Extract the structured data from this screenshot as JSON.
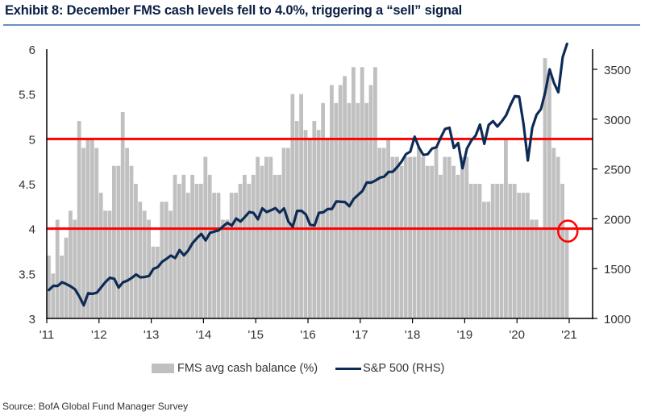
{
  "chart_data": {
    "type": "bar",
    "title": "Exhibit 8: December FMS cash levels fell to 4.0%, triggering a “sell” signal",
    "source": "Source: BofA Global Fund Manager Survey",
    "x_tick_labels": [
      "'11",
      "'12",
      "'13",
      "'14",
      "'15",
      "'16",
      "'17",
      "'18",
      "'19",
      "'20",
      "'21"
    ],
    "left_axis": {
      "label": "FMS avg cash balance (%)",
      "range": [
        3,
        6
      ],
      "ticks": [
        "3",
        "3.5",
        "4",
        "4.5",
        "5",
        "5.5",
        "6"
      ]
    },
    "right_axis": {
      "label": "S&P 500 (RHS)",
      "range": [
        1000,
        3700
      ],
      "ticks": [
        "1000",
        "1500",
        "2000",
        "2500",
        "3000",
        "3500"
      ]
    },
    "legend": {
      "position": "bottom",
      "entries": [
        "FMS avg cash balance (%)",
        "S&P 500 (RHS)"
      ]
    },
    "thresholds": [
      {
        "name": "sell-signal-threshold",
        "value": 4.0
      },
      {
        "name": "buy-signal-threshold",
        "value": 5.0
      }
    ],
    "annotation": {
      "type": "circle",
      "target": "Dec 2020",
      "value": 4.0
    },
    "series": [
      {
        "name": "FMS avg cash balance (%)",
        "type": "bar",
        "axis": "left",
        "start": "2011-01",
        "frequency": "monthly",
        "values": [
          3.7,
          3.5,
          4.1,
          3.7,
          3.9,
          4.2,
          4.1,
          5.2,
          4.9,
          5.0,
          5.0,
          4.9,
          4.4,
          4.2,
          4.2,
          4.7,
          4.7,
          5.3,
          4.9,
          4.7,
          4.5,
          4.3,
          4.2,
          4.1,
          3.8,
          3.8,
          4.3,
          4.3,
          4.2,
          4.6,
          4.5,
          4.6,
          4.4,
          4.6,
          4.5,
          4.5,
          4.8,
          4.6,
          4.4,
          4.4,
          4.1,
          4.1,
          4.4,
          4.4,
          4.5,
          4.6,
          4.5,
          4.6,
          4.8,
          4.7,
          4.8,
          4.8,
          4.6,
          4.6,
          4.9,
          4.9,
          5.5,
          5.2,
          5.5,
          5.1,
          5.0,
          5.2,
          5.1,
          5.4,
          5.0,
          5.6,
          5.4,
          5.6,
          5.7,
          5.4,
          5.8,
          5.4,
          5.8,
          5.4,
          5.6,
          5.8,
          4.9,
          4.9,
          5.0,
          4.8,
          4.8,
          4.7,
          4.8,
          4.8,
          4.8,
          4.9,
          4.8,
          4.7,
          4.7,
          4.9,
          4.6,
          4.8,
          4.8,
          4.7,
          4.6,
          4.8,
          4.8,
          4.5,
          4.5,
          4.5,
          4.3,
          4.3,
          4.5,
          4.5,
          4.5,
          5.0,
          4.5,
          4.5,
          4.4,
          4.4,
          4.4,
          4.1,
          4.1,
          4.0,
          5.9,
          5.7,
          4.9,
          4.8,
          4.5,
          4.0
        ]
      },
      {
        "name": "S&P 500 (RHS)",
        "type": "line",
        "axis": "right",
        "start": "2011-01",
        "frequency": "monthly",
        "values": [
          1286,
          1327,
          1326,
          1363,
          1345,
          1321,
          1292,
          1219,
          1131,
          1253,
          1247,
          1258,
          1312,
          1366,
          1408,
          1398,
          1310,
          1362,
          1379,
          1406,
          1441,
          1412,
          1416,
          1426,
          1498,
          1515,
          1569,
          1598,
          1631,
          1606,
          1686,
          1633,
          1682,
          1757,
          1806,
          1848,
          1783,
          1859,
          1872,
          1884,
          1924,
          1960,
          1931,
          2003,
          1972,
          2018,
          2068,
          2059,
          1995,
          2105,
          2068,
          2086,
          2107,
          2063,
          2104,
          1972,
          1920,
          2079,
          2080,
          2044,
          1940,
          1932,
          2060,
          2065,
          2097,
          2099,
          2174,
          2171,
          2168,
          2126,
          2199,
          2239,
          2279,
          2364,
          2363,
          2384,
          2412,
          2423,
          2470,
          2472,
          2519,
          2575,
          2648,
          2674,
          2824,
          2714,
          2641,
          2648,
          2705,
          2718,
          2816,
          2902,
          2914,
          2711,
          2760,
          2507,
          2704,
          2784,
          2834,
          2946,
          2752,
          2942,
          2980,
          2926,
          2977,
          3038,
          3141,
          3231,
          3226,
          2954,
          2585,
          2912,
          3044,
          3100,
          3271,
          3500,
          3363,
          3270,
          3622,
          3756
        ]
      }
    ]
  }
}
